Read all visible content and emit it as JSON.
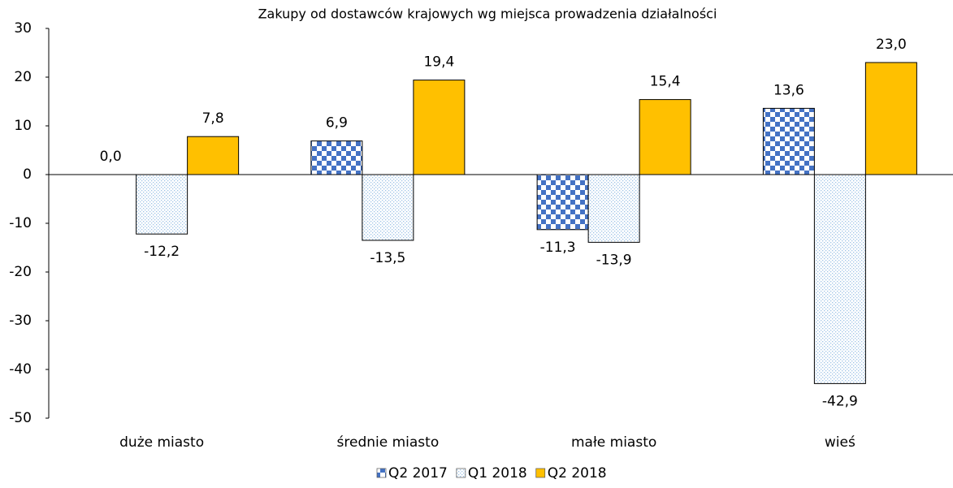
{
  "chart_data": {
    "type": "bar",
    "title": "Zakupy od dostawców krajowych wg miejsca prowadzenia działalności",
    "categories": [
      "duże miasto",
      "średnie miasto",
      "małe miasto",
      "wieś"
    ],
    "series": [
      {
        "name": "Q2 2017",
        "color": "#4472c4",
        "values": [
          0.0,
          6.9,
          -11.3,
          13.6
        ],
        "value_labels": [
          "0,0",
          "6,9",
          "-11,3",
          "13,6"
        ]
      },
      {
        "name": "Q1 2018",
        "color": "#9dc3e6",
        "values": [
          -12.2,
          -13.5,
          -13.9,
          -42.9
        ],
        "value_labels": [
          "-12,2",
          "-13,5",
          "-13,9",
          "-42,9"
        ]
      },
      {
        "name": "Q2 2018",
        "color": "#ffc000",
        "values": [
          7.8,
          19.4,
          15.4,
          23.0
        ],
        "value_labels": [
          "7,8",
          "19,4",
          "15,4",
          "23,0"
        ]
      }
    ],
    "ylim": [
      -50,
      30
    ],
    "yticks": [
      30,
      20,
      10,
      0,
      -10,
      -20,
      -30,
      -40,
      -50
    ]
  }
}
